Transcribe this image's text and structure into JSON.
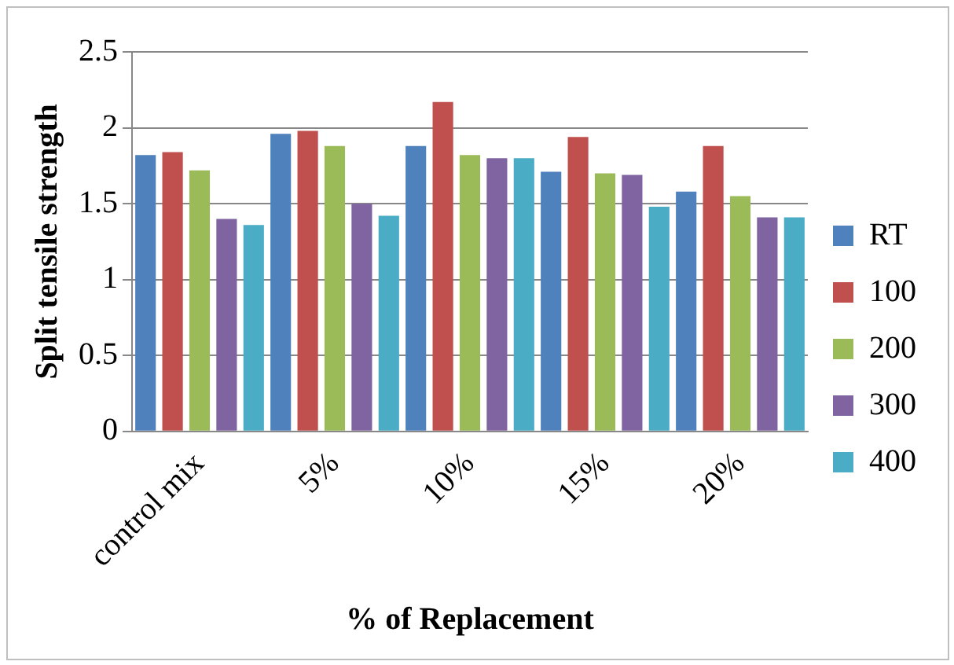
{
  "chart_data": {
    "type": "bar",
    "xlabel": "% of Replacement",
    "ylabel": "Split tensile strength",
    "categories": [
      "control mix",
      "5%",
      "10%",
      "15%",
      "20%"
    ],
    "series": [
      {
        "name": "RT",
        "color": "#4f81bd",
        "values": [
          1.82,
          1.96,
          1.88,
          1.71,
          1.58
        ]
      },
      {
        "name": "100",
        "color": "#c0504d",
        "values": [
          1.84,
          1.98,
          2.17,
          1.94,
          1.88
        ]
      },
      {
        "name": "200",
        "color": "#9bbb59",
        "values": [
          1.72,
          1.88,
          1.82,
          1.7,
          1.55
        ]
      },
      {
        "name": "300",
        "color": "#8064a2",
        "values": [
          1.4,
          1.5,
          1.8,
          1.69,
          1.41
        ]
      },
      {
        "name": "400",
        "color": "#4bacc6",
        "values": [
          1.36,
          1.42,
          1.8,
          1.48,
          1.41
        ]
      }
    ],
    "ylim": [
      0,
      2.5
    ],
    "yticks": [
      0,
      0.5,
      1,
      1.5,
      2,
      2.5
    ],
    "grid": "y",
    "legend": "right"
  }
}
